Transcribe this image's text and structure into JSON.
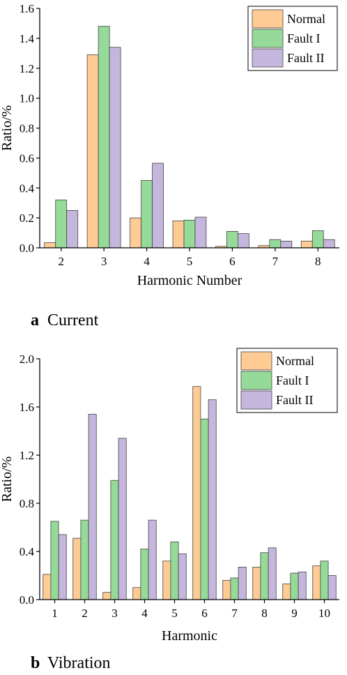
{
  "colors": {
    "Normal": "#FDCB93",
    "Fault I": "#95DA98",
    "Fault II": "#C5B6DD",
    "stroke": "#444444"
  },
  "chart_data": [
    {
      "type": "bar",
      "caption_letter": "a",
      "caption_text": "Current",
      "xlabel": "Harmonic Number",
      "ylabel": "Ratio/%",
      "ylim": [
        0,
        1.6
      ],
      "yticks": [
        "0.0",
        "0.2",
        "0.4",
        "0.6",
        "0.8",
        "1.0",
        "1.2",
        "1.4",
        "1.6"
      ],
      "categories": [
        "2",
        "3",
        "4",
        "5",
        "6",
        "7",
        "8"
      ],
      "legend_position": "top-right",
      "series": [
        {
          "name": "Normal",
          "values": [
            0.035,
            1.29,
            0.2,
            0.18,
            0.01,
            0.015,
            0.045
          ]
        },
        {
          "name": "Fault I",
          "values": [
            0.32,
            1.48,
            0.45,
            0.185,
            0.11,
            0.055,
            0.115
          ]
        },
        {
          "name": "Fault II",
          "values": [
            0.25,
            1.34,
            0.565,
            0.205,
            0.095,
            0.045,
            0.055
          ]
        }
      ]
    },
    {
      "type": "bar",
      "caption_letter": "b",
      "caption_text": "Vibration",
      "xlabel": "Harmonic",
      "ylabel": "Ratio/%",
      "ylim": [
        0,
        2.0
      ],
      "yticks": [
        "0.0",
        "0.4",
        "0.8",
        "1.2",
        "1.6",
        "2.0"
      ],
      "categories": [
        "1",
        "2",
        "3",
        "4",
        "5",
        "6",
        "7",
        "8",
        "9",
        "10"
      ],
      "legend_position": "top-right",
      "series": [
        {
          "name": "Normal",
          "values": [
            0.21,
            0.51,
            0.06,
            0.1,
            0.32,
            1.77,
            0.16,
            0.27,
            0.13,
            0.28
          ]
        },
        {
          "name": "Fault I",
          "values": [
            0.65,
            0.66,
            0.99,
            0.42,
            0.48,
            1.5,
            0.18,
            0.39,
            0.22,
            0.32
          ]
        },
        {
          "name": "Fault II",
          "values": [
            0.54,
            1.54,
            1.34,
            0.66,
            0.38,
            1.66,
            0.27,
            0.43,
            0.23,
            0.2
          ]
        }
      ]
    }
  ]
}
